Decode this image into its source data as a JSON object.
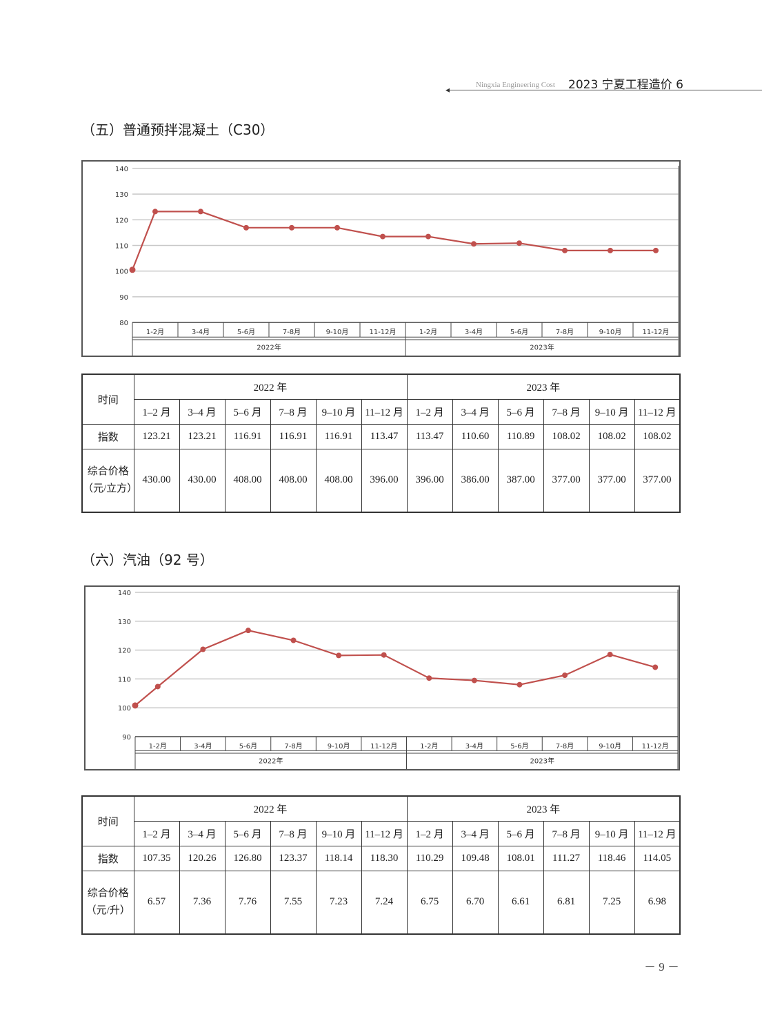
{
  "header": {
    "journal_en": "Ningxia Engineering Cost",
    "journal_cn": "2023 宁夏工程造价 6"
  },
  "sections": [
    {
      "title": "（五）普通预拌混凝土（C30）",
      "table": {
        "time_label": "时间",
        "years": [
          "2022 年",
          "2023 年"
        ],
        "periods": [
          "1–2 月",
          "3–4 月",
          "5–6 月",
          "7–8 月",
          "9–10 月",
          "11–12 月",
          "1–2 月",
          "3–4 月",
          "5–6 月",
          "7–8 月",
          "9–10 月",
          "11–12 月"
        ],
        "index_label": "指数",
        "index": [
          "123.21",
          "123.21",
          "116.91",
          "116.91",
          "116.91",
          "113.47",
          "113.47",
          "110.60",
          "110.89",
          "108.02",
          "108.02",
          "108.02"
        ],
        "price_label_line1": "综合价格",
        "price_label_line2": "（元/立方）",
        "price": [
          "430.00",
          "430.00",
          "408.00",
          "408.00",
          "408.00",
          "396.00",
          "396.00",
          "386.00",
          "387.00",
          "377.00",
          "377.00",
          "377.00"
        ]
      }
    },
    {
      "title": "（六）汽油（92 号）",
      "table": {
        "time_label": "时间",
        "years": [
          "2022 年",
          "2023 年"
        ],
        "periods": [
          "1–2 月",
          "3–4 月",
          "5–6 月",
          "7–8 月",
          "9–10 月",
          "11–12 月",
          "1–2 月",
          "3–4 月",
          "5–6 月",
          "7–8 月",
          "9–10 月",
          "11–12 月"
        ],
        "index_label": "指数",
        "index": [
          "107.35",
          "120.26",
          "126.80",
          "123.37",
          "118.14",
          "118.30",
          "110.29",
          "109.48",
          "108.01",
          "111.27",
          "118.46",
          "114.05"
        ],
        "price_label_line1": "综合价格",
        "price_label_line2": "（元/升）",
        "price": [
          "6.57",
          "7.36",
          "7.76",
          "7.55",
          "7.23",
          "7.24",
          "6.75",
          "6.70",
          "6.61",
          "6.81",
          "7.25",
          "6.98"
        ]
      }
    }
  ],
  "chart_data": [
    {
      "type": "line",
      "title": "",
      "categories": [
        "1-2月",
        "3-4月",
        "5-6月",
        "7-8月",
        "9-10月",
        "11-12月",
        "1-2月",
        "3-4月",
        "5-6月",
        "7-8月",
        "9-10月",
        "11-12月"
      ],
      "groups": [
        "2022年",
        "2023年"
      ],
      "base_value": 100.5,
      "values": [
        123.21,
        123.21,
        116.91,
        116.91,
        116.91,
        113.47,
        113.47,
        110.6,
        110.89,
        108.02,
        108.02,
        108.02
      ],
      "yticks": [
        80,
        90,
        100,
        110,
        120,
        130,
        140
      ],
      "ylim": [
        80,
        140
      ],
      "grid": true,
      "color": "#c0504d"
    },
    {
      "type": "line",
      "title": "",
      "categories": [
        "1-2月",
        "3-4月",
        "5-6月",
        "7-8月",
        "9-10月",
        "11-12月",
        "1-2月",
        "3-4月",
        "5-6月",
        "7-8月",
        "9-10月",
        "11-12月"
      ],
      "groups": [
        "2022年",
        "2023年"
      ],
      "base_value": 100.8,
      "values": [
        107.35,
        120.26,
        126.8,
        123.37,
        118.14,
        118.3,
        110.29,
        109.48,
        108.01,
        111.27,
        118.46,
        114.05
      ],
      "yticks": [
        90,
        100,
        110,
        120,
        130,
        140
      ],
      "ylim": [
        90,
        140
      ],
      "grid": true,
      "color": "#c0504d"
    }
  ],
  "footer": {
    "page_number": "－ 9 －"
  }
}
